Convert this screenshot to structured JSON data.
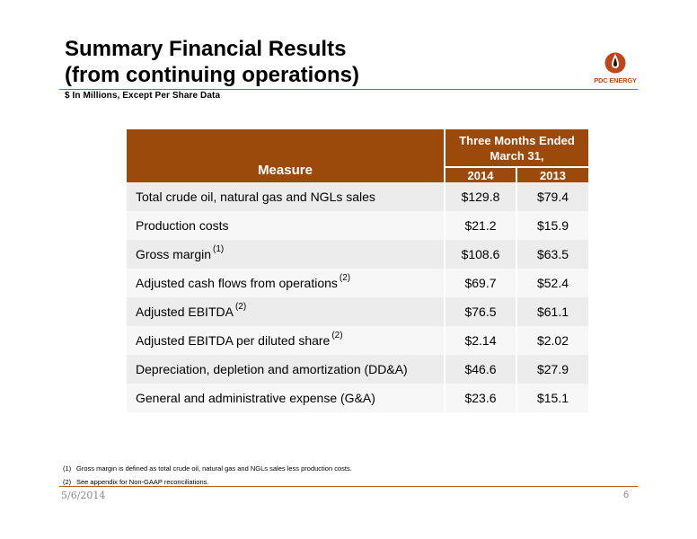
{
  "header": {
    "title_line1": "Summary Financial Results",
    "title_line2": "(from continuing operations)",
    "subtitle": "$ In Millions, Except Per Share Data"
  },
  "logo": {
    "text": "PDC ENERGY",
    "icon": "oil-drop-logo-icon",
    "color": "#c0461a"
  },
  "table": {
    "measure_header": "Measure",
    "period_header": "Three Months Ended March 31,",
    "years": [
      "2014",
      "2013"
    ],
    "header_color": "#9b4a0c",
    "rows": [
      {
        "label": "Total crude oil, natural gas and NGLs sales",
        "note": "",
        "v2014": "$129.8",
        "v2013": "$79.4"
      },
      {
        "label": "Production costs",
        "note": "",
        "v2014": "$21.2",
        "v2013": "$15.9"
      },
      {
        "label": "Gross margin",
        "note": "(1)",
        "v2014": "$108.6",
        "v2013": "$63.5"
      },
      {
        "label": "Adjusted cash flows from operations",
        "note": "(2)",
        "v2014": "$69.7",
        "v2013": "$52.4"
      },
      {
        "label": "Adjusted EBITDA",
        "note": "(2)",
        "v2014": "$76.5",
        "v2013": "$61.1"
      },
      {
        "label": "Adjusted EBITDA per diluted share",
        "note": "(2)",
        "v2014": "$2.14",
        "v2013": "$2.02"
      },
      {
        "label": "Depreciation, depletion and amortization (DD&A)",
        "note": "",
        "v2014": "$46.6",
        "v2013": "$27.9"
      },
      {
        "label": "General and administrative expense (G&A)",
        "note": "",
        "v2014": "$23.6",
        "v2013": "$15.1"
      }
    ]
  },
  "footnotes": [
    {
      "num": "(1)",
      "text": "Gross margin is defined as total crude oil, natural gas and NGLs sales less production costs."
    },
    {
      "num": "(2)",
      "text": "See appendix for Non-GAAP reconciliations."
    }
  ],
  "footer": {
    "date": "5/6/2014",
    "page": "6"
  }
}
